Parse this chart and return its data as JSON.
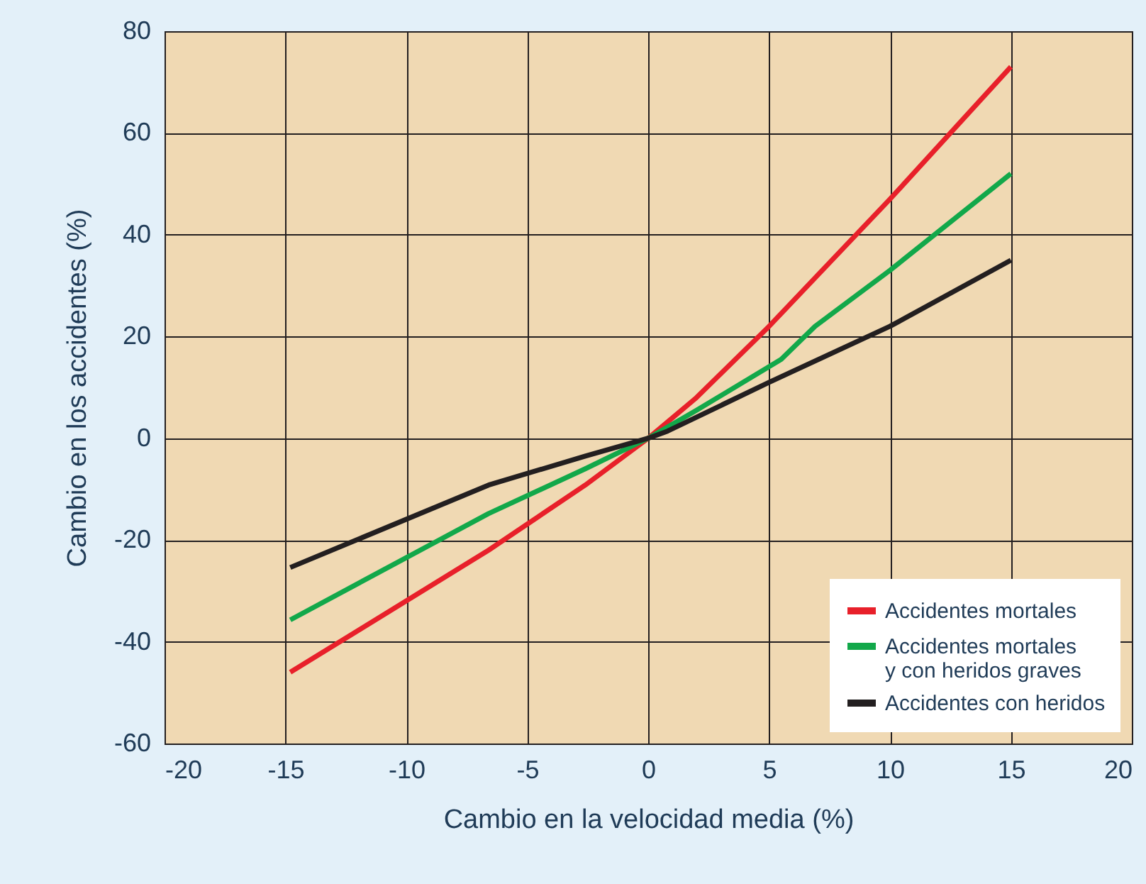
{
  "chart_data": {
    "type": "line",
    "xlabel": "Cambio en la velocidad media (%)",
    "ylabel": "Cambio en los accidentes (%)",
    "xlim": [
      -20,
      20
    ],
    "xticks": [
      -20,
      -15,
      -10,
      -5,
      0,
      5,
      10,
      15,
      20
    ],
    "ylim": [
      -60,
      80
    ],
    "yticks": [
      -60,
      -40,
      -20,
      0,
      20,
      40,
      60,
      80
    ],
    "grid": true,
    "legend": "bottom right",
    "line_style": "solid",
    "marker": "none",
    "series": [
      {
        "name": "Accidentes mortales",
        "color": "#e8202a",
        "x": [
          -14.8,
          -6.6,
          -2.6,
          0,
          2,
          5,
          10,
          15
        ],
        "values": [
          -46,
          -22,
          -9.2,
          0,
          8,
          22,
          47,
          73
        ]
      },
      {
        "name": "Accidentes mortales\ny con heridos graves",
        "color": "#12a84a",
        "x": [
          -14.8,
          -6.6,
          -2.6,
          0,
          2,
          5.5,
          6.9,
          10,
          15
        ],
        "values": [
          -35.7,
          -14.8,
          -6,
          0,
          5.5,
          15.5,
          22,
          33,
          52
        ]
      },
      {
        "name": "Accidentes con heridos",
        "color": "#231f20",
        "x": [
          -14.8,
          -6.6,
          -2.6,
          0,
          0.8,
          5,
          10,
          15
        ],
        "values": [
          -25.4,
          -9.2,
          -3.5,
          0,
          1.4,
          11,
          22,
          35
        ]
      }
    ]
  }
}
